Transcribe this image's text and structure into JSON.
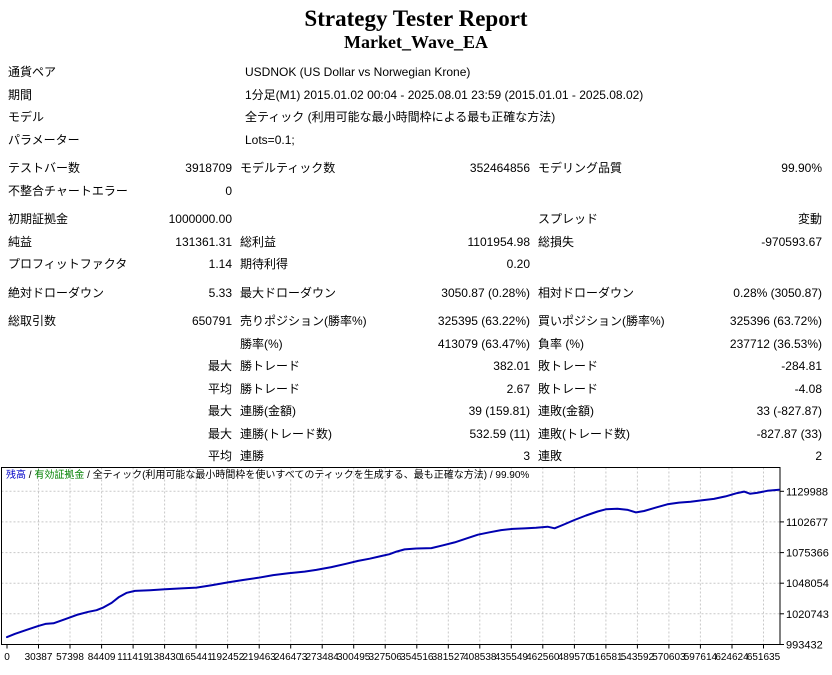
{
  "header": {
    "title": "Strategy Tester Report",
    "subtitle": "Market_Wave_EA"
  },
  "report": {
    "rows": [
      {
        "type": "wide",
        "c1": "通貨ペア",
        "wide": "USDNOK (US Dollar vs Norwegian Krone)"
      },
      {
        "type": "wide",
        "c1": "期間",
        "wide": "1分足(M1) 2015.01.02 00:04 - 2025.08.01 23:59 (2015.01.01 - 2025.08.02)"
      },
      {
        "type": "wide",
        "c1": "モデル",
        "wide": "全ティック (利用可能な最小時間枠による最も正確な方法)"
      },
      {
        "type": "wide",
        "c1": "パラメーター",
        "wide": "Lots=0.1;"
      },
      {
        "type": "cols",
        "gap": true,
        "c1": "テストバー数",
        "c2": "3918709",
        "c3": "モデルティック数",
        "c4": "352464856",
        "c5": "モデリング品質",
        "c6": "99.90%"
      },
      {
        "type": "cols",
        "c1": "不整合チャートエラー",
        "c2": "0"
      },
      {
        "type": "cols",
        "gap": true,
        "c1": "初期証拠金",
        "c2": "1000000.00",
        "c5": "スプレッド",
        "c6": "変動"
      },
      {
        "type": "cols",
        "c1": "純益",
        "c2": "131361.31",
        "c3": "総利益",
        "c4": "1101954.98",
        "c5": "総損失",
        "c6": "-970593.67"
      },
      {
        "type": "cols",
        "c1": "プロフィットファクタ",
        "c2": "1.14",
        "c3": "期待利得",
        "c4": "0.20"
      },
      {
        "type": "cols",
        "gap": true,
        "c1": "絶対ドローダウン",
        "c2": "5.33",
        "c3": "最大ドローダウン",
        "c4": "3050.87 (0.28%)",
        "c5": "相対ドローダウン",
        "c6": "0.28% (3050.87)"
      },
      {
        "type": "cols",
        "gap": true,
        "c1": "総取引数",
        "c2": "650791",
        "c3": "売りポジション(勝率%)",
        "c4": "325395 (63.22%)",
        "c5": "買いポジション(勝率%)",
        "c6": "325396 (63.72%)"
      },
      {
        "type": "cols",
        "c3": "勝率(%)",
        "c4": "413079 (63.47%)",
        "c5": "負率 (%)",
        "c6": "237712 (36.53%)"
      },
      {
        "type": "cols",
        "c2": "最大",
        "c3": "勝トレード",
        "c4": "382.01",
        "c5": "敗トレード",
        "c6": "-284.81"
      },
      {
        "type": "cols",
        "c2": "平均",
        "c3": "勝トレード",
        "c4": "2.67",
        "c5": "敗トレード",
        "c6": "-4.08"
      },
      {
        "type": "cols",
        "c2": "最大",
        "c3": "連勝(金額)",
        "c4": "39 (159.81)",
        "c5": "連敗(金額)",
        "c6": "33 (-827.87)"
      },
      {
        "type": "cols",
        "c2": "最大",
        "c3": "連勝(トレード数)",
        "c4": "532.59 (11)",
        "c5": "連敗(トレード数)",
        "c6": "-827.87 (33)"
      },
      {
        "type": "cols",
        "c2": "平均",
        "c3": "連勝",
        "c4": "3",
        "c5": "連敗",
        "c6": "2"
      }
    ]
  },
  "chart_data": {
    "type": "line",
    "legend": {
      "balance_label": "残高",
      "equity_label": "有効証拠金",
      "model_label": "全ティック(利用可能な最小時間枠を使いすべてのティックを生成する、最も正確な方法)",
      "quality_label": "99.90%",
      "separator": " / "
    },
    "xlabel": "",
    "ylabel": "",
    "x_tick_labels": [
      "0",
      "30387",
      "57398",
      "84409",
      "111419",
      "138430",
      "165441",
      "192452",
      "219463",
      "246473",
      "273484",
      "300495",
      "327506",
      "354516",
      "381527",
      "408538",
      "435549",
      "462560",
      "489570",
      "516581",
      "543592",
      "570603",
      "597614",
      "624624",
      "651635"
    ],
    "y_tick_labels": [
      "993432",
      "1020743",
      "1048054",
      "1075366",
      "1102677",
      "1129988"
    ],
    "ylim": [
      993432,
      1135000
    ],
    "xlim": [
      0,
      664000
    ],
    "grid": true,
    "colors": {
      "line": "#0000B0",
      "grid": "#c8c8c8",
      "border": "#000000",
      "balance_text": "#0000C8",
      "equity_text": "#008000"
    },
    "series": [
      {
        "name": "残高",
        "points": [
          [
            0,
            1000000
          ],
          [
            7000,
            1003000
          ],
          [
            17000,
            1006500
          ],
          [
            27000,
            1010000
          ],
          [
            33000,
            1011800
          ],
          [
            40000,
            1012300
          ],
          [
            50000,
            1016000
          ],
          [
            60000,
            1019800
          ],
          [
            70000,
            1022600
          ],
          [
            77000,
            1024000
          ],
          [
            83000,
            1026500
          ],
          [
            90000,
            1030500
          ],
          [
            96000,
            1035500
          ],
          [
            103000,
            1039500
          ],
          [
            110000,
            1041200
          ],
          [
            123000,
            1041800
          ],
          [
            136000,
            1042600
          ],
          [
            150000,
            1043400
          ],
          [
            163000,
            1044100
          ],
          [
            176000,
            1046300
          ],
          [
            190000,
            1048800
          ],
          [
            203000,
            1050900
          ],
          [
            216000,
            1052900
          ],
          [
            229000,
            1055300
          ],
          [
            242000,
            1056900
          ],
          [
            256000,
            1058400
          ],
          [
            266000,
            1059900
          ],
          [
            279000,
            1062400
          ],
          [
            292000,
            1065400
          ],
          [
            302000,
            1067900
          ],
          [
            312000,
            1069900
          ],
          [
            322000,
            1072300
          ],
          [
            329000,
            1073900
          ],
          [
            335000,
            1076200
          ],
          [
            342000,
            1078200
          ],
          [
            352000,
            1079000
          ],
          [
            365000,
            1079300
          ],
          [
            375000,
            1081800
          ],
          [
            385000,
            1084400
          ],
          [
            395000,
            1087800
          ],
          [
            405000,
            1091300
          ],
          [
            415000,
            1093400
          ],
          [
            425000,
            1095400
          ],
          [
            435000,
            1096400
          ],
          [
            445000,
            1096900
          ],
          [
            455000,
            1097400
          ],
          [
            465000,
            1098400
          ],
          [
            471000,
            1097000
          ],
          [
            478000,
            1099900
          ],
          [
            488000,
            1104400
          ],
          [
            498000,
            1108400
          ],
          [
            508000,
            1111900
          ],
          [
            515000,
            1113900
          ],
          [
            525000,
            1114400
          ],
          [
            534000,
            1113400
          ],
          [
            541000,
            1111100
          ],
          [
            548000,
            1112400
          ],
          [
            558000,
            1115400
          ],
          [
            568000,
            1118400
          ],
          [
            578000,
            1119900
          ],
          [
            588000,
            1120700
          ],
          [
            598000,
            1121900
          ],
          [
            608000,
            1123200
          ],
          [
            618000,
            1125400
          ],
          [
            628000,
            1128300
          ],
          [
            634000,
            1129700
          ],
          [
            639000,
            1127800
          ],
          [
            645000,
            1128500
          ],
          [
            654000,
            1130400
          ],
          [
            664000,
            1131361
          ]
        ]
      }
    ]
  }
}
